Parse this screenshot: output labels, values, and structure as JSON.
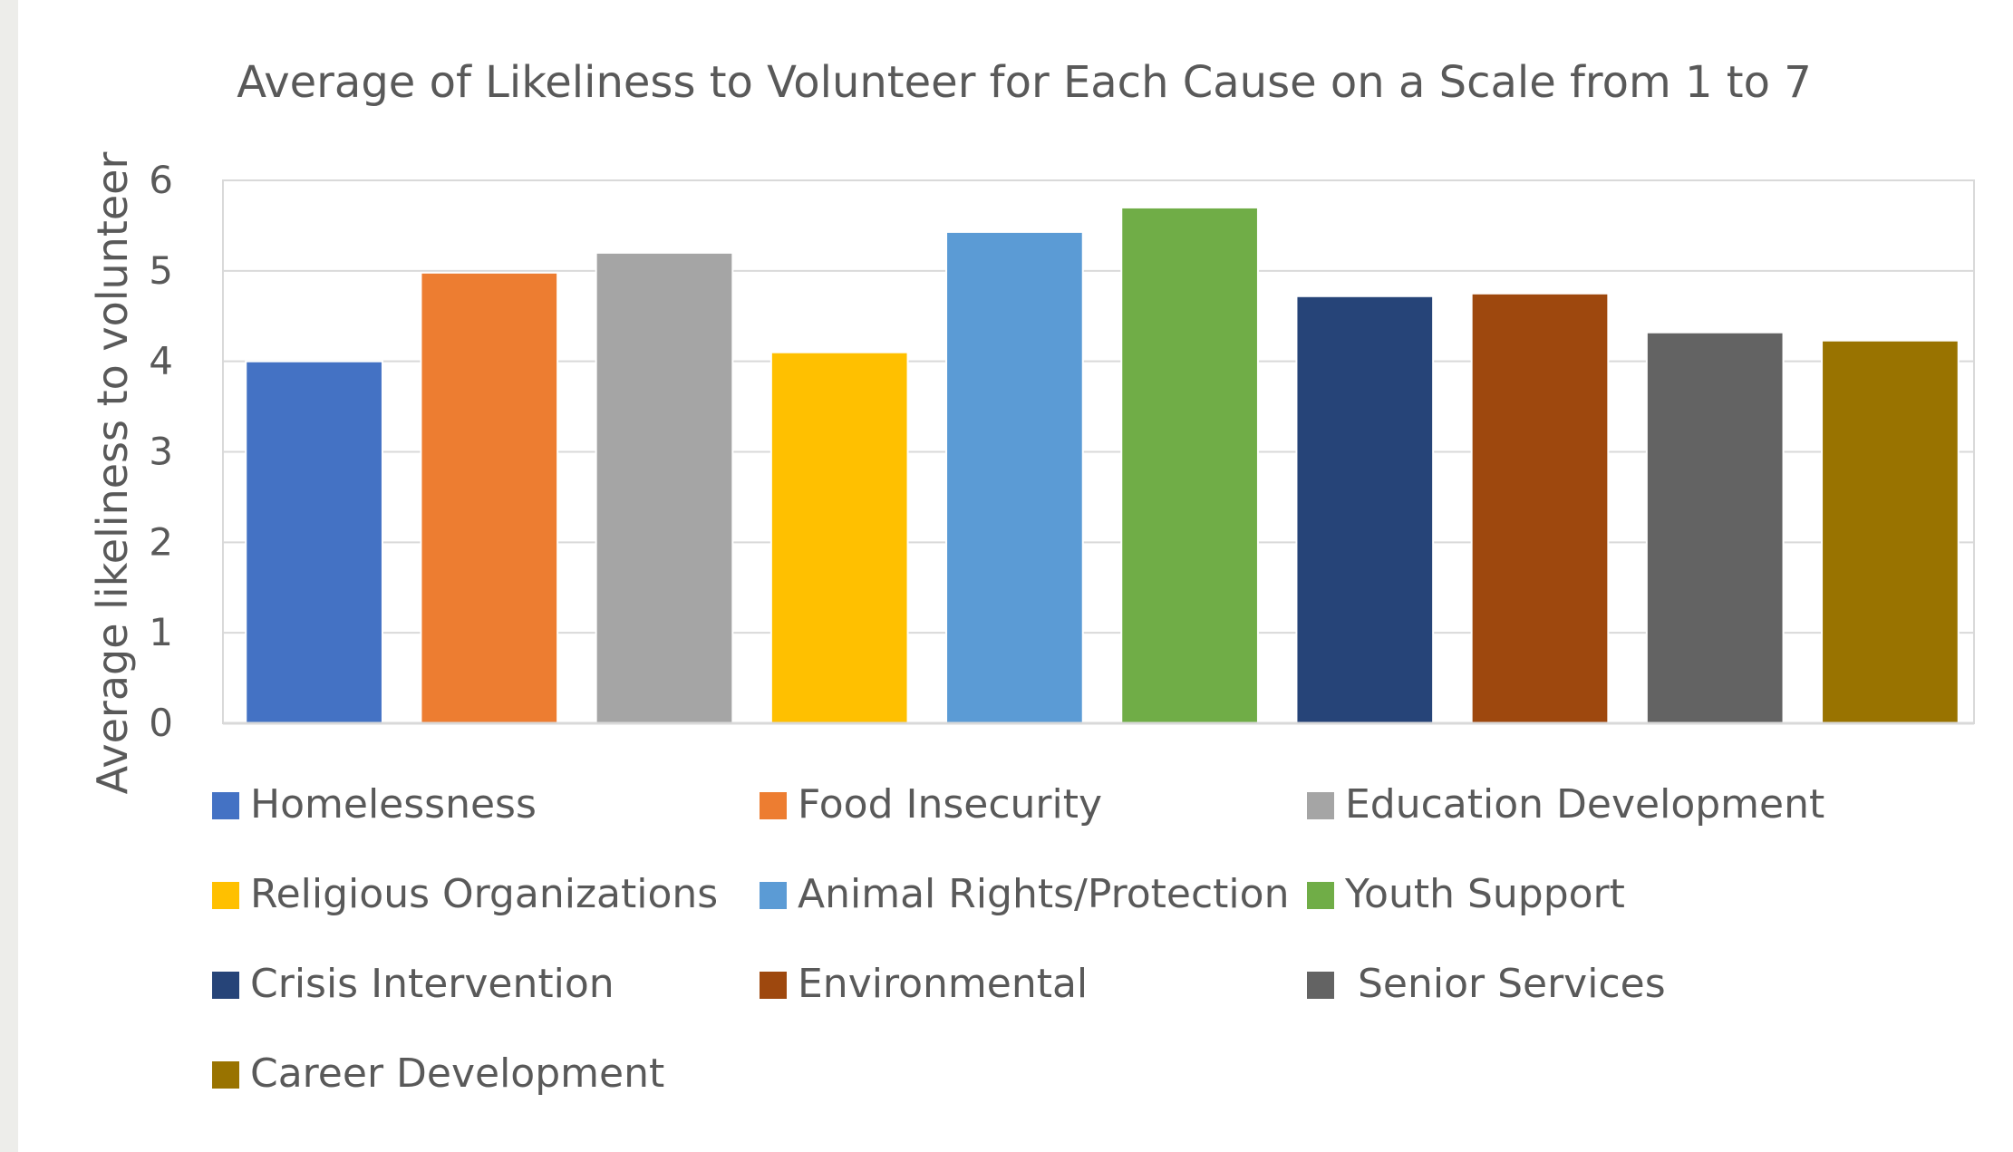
{
  "chart_data": {
    "type": "bar",
    "title": "Average of Likeliness to Volunteer for Each Cause on a Scale from 1 to 7",
    "xlabel": "",
    "ylabel": "Average likeliness to volunteer",
    "ylim": [
      0,
      6
    ],
    "yticks": [
      0,
      1,
      2,
      3,
      4,
      5,
      6
    ],
    "grid": true,
    "legend_position": "bottom",
    "categories": [
      "Homelessness",
      "Food Insecurity",
      "Education Development",
      "Religious Organizations",
      "Animal Rights/Protection",
      "Youth Support",
      "Crisis Intervention",
      "Environmental",
      " Senior Services",
      "Career Development"
    ],
    "values": [
      4.0,
      4.98,
      5.2,
      4.1,
      5.43,
      5.7,
      4.72,
      4.75,
      4.32,
      4.23
    ],
    "colors": [
      "#4472c4",
      "#ed7d31",
      "#a5a5a5",
      "#ffc000",
      "#5b9bd5",
      "#70ad47",
      "#264478",
      "#9e480e",
      "#636363",
      "#997300"
    ]
  }
}
